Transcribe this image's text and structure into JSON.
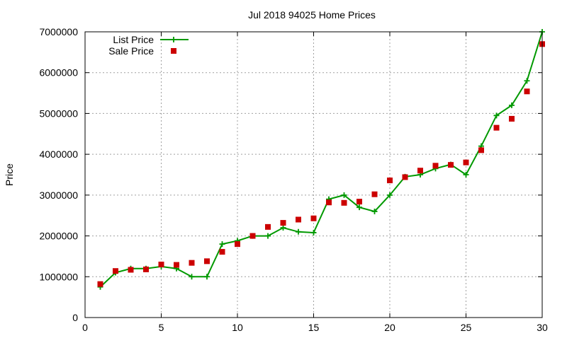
{
  "chart_data": {
    "type": "line",
    "title": "Jul 2018 94025 Home Prices",
    "xlabel": "",
    "ylabel": "Price",
    "xlim": [
      0,
      30
    ],
    "ylim": [
      0,
      7000000
    ],
    "x_ticks": [
      0,
      5,
      10,
      15,
      20,
      25,
      30
    ],
    "y_ticks": [
      0,
      1000000,
      2000000,
      3000000,
      4000000,
      5000000,
      6000000,
      7000000
    ],
    "grid": true,
    "legend_position": "top-left",
    "series": [
      {
        "name": "List Price",
        "style": "line-with-plus-markers",
        "color": "#009900",
        "x": [
          1,
          2,
          3,
          4,
          5,
          6,
          7,
          8,
          9,
          10,
          11,
          12,
          13,
          14,
          15,
          16,
          17,
          18,
          19,
          20,
          21,
          22,
          23,
          24,
          25,
          26,
          27,
          28,
          29,
          30
        ],
        "values": [
          750000,
          1100000,
          1200000,
          1200000,
          1250000,
          1200000,
          1000000,
          1000000,
          1800000,
          1880000,
          2000000,
          2000000,
          2200000,
          2100000,
          2080000,
          2900000,
          3000000,
          2700000,
          2600000,
          3000000,
          3450000,
          3500000,
          3650000,
          3750000,
          3500000,
          4200000,
          4950000,
          5200000,
          5800000,
          7000000
        ]
      },
      {
        "name": "Sale Price",
        "style": "square-markers",
        "color": "#cc0000",
        "x": [
          1,
          2,
          3,
          4,
          5,
          6,
          7,
          8,
          9,
          10,
          11,
          12,
          13,
          14,
          15,
          16,
          17,
          18,
          19,
          20,
          21,
          22,
          23,
          24,
          25,
          26,
          27,
          28,
          29,
          30
        ],
        "values": [
          820000,
          1140000,
          1170000,
          1180000,
          1300000,
          1290000,
          1340000,
          1380000,
          1610000,
          1800000,
          2000000,
          2220000,
          2320000,
          2400000,
          2430000,
          2820000,
          2810000,
          2840000,
          3020000,
          3360000,
          3440000,
          3600000,
          3720000,
          3740000,
          3800000,
          4100000,
          4650000,
          4870000,
          5540000,
          6700000
        ]
      }
    ]
  }
}
